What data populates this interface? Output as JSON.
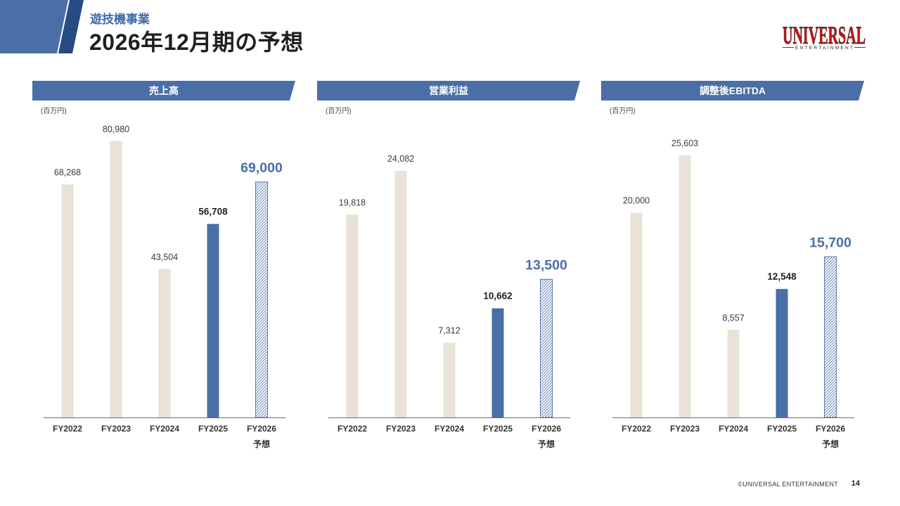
{
  "header": {
    "section": "遊技機事業",
    "title": "2026年12月期の予想"
  },
  "logo": {
    "main": "UNIVERSAL",
    "sub": "ENTERTAINMENT"
  },
  "colors": {
    "accent": "#4a6fa6",
    "accent_dark": "#274b84",
    "past_bar": "#e8e2d7",
    "section_text": "#3f6ba8",
    "title_text": "#1f1f1f",
    "logo_red": "#d0121b"
  },
  "chart_data": [
    {
      "type": "bar",
      "title": "売上高",
      "unit_label": "(百万円)",
      "categories": [
        "FY2022",
        "FY2023",
        "FY2024",
        "FY2025",
        "FY2026"
      ],
      "category_sublabels": [
        "",
        "",
        "",
        "",
        "予想"
      ],
      "values": [
        68268,
        80980,
        43504,
        56708,
        69000
      ],
      "value_labels": [
        "68,268",
        "80,980",
        "43,504",
        "56,708",
        "69,000"
      ],
      "bar_colors": [
        "#e8e2d7",
        "#e8e2d7",
        "#e8e2d7",
        "#4a6fa6",
        "#4a6fa6"
      ],
      "hatched": [
        false,
        false,
        false,
        false,
        true
      ],
      "ylim": [
        0,
        90000
      ],
      "grid": false
    },
    {
      "type": "bar",
      "title": "営業利益",
      "unit_label": "(百万円)",
      "categories": [
        "FY2022",
        "FY2023",
        "FY2024",
        "FY2025",
        "FY2026"
      ],
      "category_sublabels": [
        "",
        "",
        "",
        "",
        "予想"
      ],
      "values": [
        19818,
        24082,
        7312,
        10662,
        13500
      ],
      "value_labels": [
        "19,818",
        "24,082",
        "7,312",
        "10,662",
        "13,500"
      ],
      "bar_colors": [
        "#e8e2d7",
        "#e8e2d7",
        "#e8e2d7",
        "#4a6fa6",
        "#4a6fa6"
      ],
      "hatched": [
        false,
        false,
        false,
        false,
        true
      ],
      "ylim": [
        0,
        30000
      ],
      "grid": false
    },
    {
      "type": "bar",
      "title": "調整後EBITDA",
      "unit_label": "(百万円)",
      "categories": [
        "FY2022",
        "FY2023",
        "FY2024",
        "FY2025",
        "FY2026"
      ],
      "category_sublabels": [
        "",
        "",
        "",
        "",
        "予想"
      ],
      "values": [
        20000,
        25603,
        8557,
        12548,
        15700
      ],
      "value_labels": [
        "20,000",
        "25,603",
        "8,557",
        "12,548",
        "15,700"
      ],
      "bar_colors": [
        "#e8e2d7",
        "#e8e2d7",
        "#e8e2d7",
        "#4a6fa6",
        "#4a6fa6"
      ],
      "hatched": [
        false,
        false,
        false,
        false,
        true
      ],
      "ylim": [
        0,
        30000
      ],
      "grid": false
    }
  ],
  "footer": {
    "copyright": "©UNIVERSAL ENTERTAINMENT",
    "page_number": "14"
  }
}
